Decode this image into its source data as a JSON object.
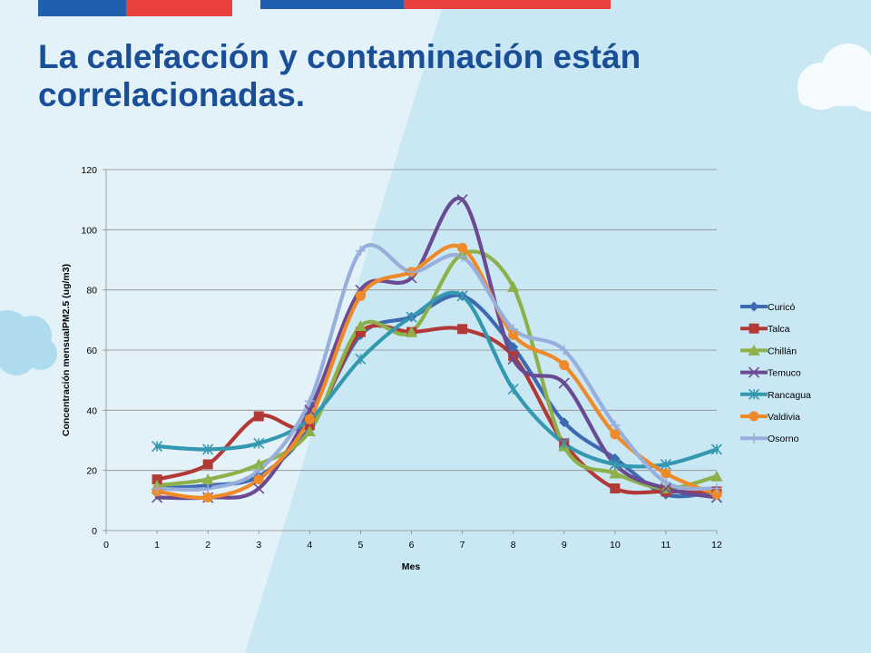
{
  "slide": {
    "title_line1": "La calefacción y contaminación están",
    "title_line2": "correlacionadas.",
    "colors": {
      "background": "#dbeff7",
      "title": "#1a4e96",
      "stripe_blue": "#1f5fad",
      "stripe_red": "#e8403f"
    }
  },
  "chart_data": {
    "type": "line",
    "xlabel": "Mes",
    "ylabel": "Concentración mensualPM2.5 (ug/m3)",
    "xlim": [
      0,
      12
    ],
    "ylim": [
      0,
      120
    ],
    "xticks": [
      0,
      1,
      2,
      3,
      4,
      5,
      6,
      7,
      8,
      9,
      10,
      11,
      12
    ],
    "yticks": [
      0,
      20,
      40,
      60,
      80,
      100,
      120
    ],
    "grid": "horizontal",
    "legend_position": "right",
    "x": [
      1,
      2,
      3,
      4,
      5,
      6,
      7,
      8,
      9,
      10,
      11,
      12
    ],
    "series": [
      {
        "name": "Curicó",
        "color": "#3d6ab0",
        "marker": "diamond",
        "values": [
          14,
          15,
          18,
          34,
          65,
          71,
          78,
          61,
          36,
          24,
          12,
          13
        ]
      },
      {
        "name": "Talca",
        "color": "#b23a36",
        "marker": "square",
        "values": [
          17,
          22,
          38,
          35,
          66,
          66,
          67,
          58,
          29,
          14,
          13,
          13
        ]
      },
      {
        "name": "Chillán",
        "color": "#8db04a",
        "marker": "triangle",
        "values": [
          15,
          17,
          22,
          33,
          68,
          66,
          92,
          81,
          28,
          19,
          14,
          18
        ]
      },
      {
        "name": "Temuco",
        "color": "#6a4a92",
        "marker": "x",
        "values": [
          11,
          11,
          14,
          40,
          80,
          84,
          110,
          57,
          49,
          22,
          14,
          11
        ]
      },
      {
        "name": "Rancagua",
        "color": "#3498b0",
        "marker": "star",
        "values": [
          28,
          27,
          29,
          37,
          57,
          71,
          78,
          47,
          29,
          22,
          22,
          27
        ]
      },
      {
        "name": "Valdivia",
        "color": "#ef8a2a",
        "marker": "circle",
        "values": [
          13,
          11,
          17,
          37,
          78,
          86,
          94,
          65,
          55,
          32,
          19,
          12
        ]
      },
      {
        "name": "Osorno",
        "color": "#98aedb",
        "marker": "plus",
        "values": [
          14,
          14,
          20,
          43,
          93,
          86,
          91,
          67,
          60,
          35,
          16,
          14
        ]
      }
    ]
  }
}
